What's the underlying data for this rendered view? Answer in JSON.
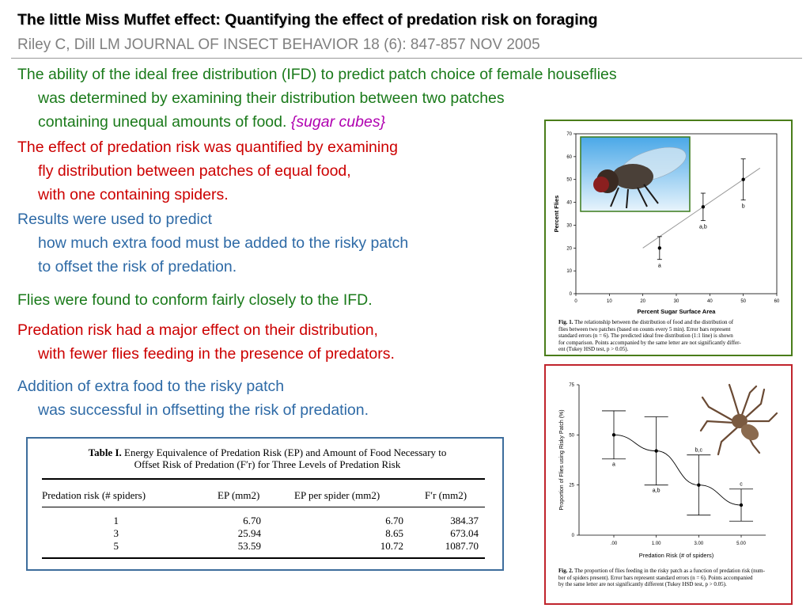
{
  "header": {
    "title": "The little Miss Muffet effect: Quantifying the effect of predation risk on foraging",
    "citation": "Riley C, Dill LM  JOURNAL OF INSECT BEHAVIOR 18 (6): 847-857 NOV 2005"
  },
  "paragraphs": {
    "p1": {
      "line1": "The ability of the ideal free distribution (IFD) to predict patch choice of female houseflies",
      "line2": "was determined by examining their distribution between two patches",
      "line3": "containing unequal amounts of food.",
      "note": "{sugar cubes}"
    },
    "p2": {
      "line1": "The effect of predation risk was quantified by examining",
      "line2": "fly distribution between patches of equal food,",
      "line3": "with one containing spiders."
    },
    "p3": {
      "line1": "Results were used to predict",
      "line2": "how much extra food must be added to the risky patch",
      "line3": "to offset the risk of predation."
    },
    "p4": {
      "line1": "Flies were found to conform fairly closely to the IFD."
    },
    "p5": {
      "line1": "Predation risk had a major effect on their distribution,",
      "line2": "with fewer flies feeding in the presence of predators."
    },
    "p6": {
      "line1": "Addition of extra food to the risky patch",
      "line2": "was successful in offsetting the risk of predation."
    }
  },
  "table": {
    "caption_label": "Table I.",
    "caption_line1": "Energy Equivalence of Predation Risk (EP) and Amount of Food Necessary to",
    "caption_line2": "Offset Risk of Predation (F′r) for Three Levels of Predation Risk",
    "headers": [
      "Predation risk (# spiders)",
      "EP (mm2)",
      "EP per spider (mm2)",
      "F′r (mm2)"
    ],
    "rows": [
      [
        "1",
        "6.70",
        "6.70",
        "384.37"
      ],
      [
        "3",
        "25.94",
        "8.65",
        "673.04"
      ],
      [
        "5",
        "53.59",
        "10.72",
        "1087.70"
      ]
    ]
  },
  "chart_data": [
    {
      "type": "scatter",
      "title": "",
      "xlabel": "Percent Sugar Surface Area",
      "ylabel": "Percent Flies",
      "xlim": [
        0,
        60
      ],
      "ylim": [
        0,
        70
      ],
      "xticks": [
        "0",
        "10",
        "20",
        "30",
        "40",
        "50",
        "60"
      ],
      "yticks": [
        "0",
        "10",
        "20",
        "30",
        "40",
        "50",
        "60",
        "70"
      ],
      "points": [
        {
          "x": 25,
          "y": 20,
          "err": 5,
          "label": "a"
        },
        {
          "x": 38,
          "y": 38,
          "err": 6,
          "label": "a,b"
        },
        {
          "x": 50,
          "y": 50,
          "err": 9,
          "label": "b"
        }
      ],
      "ifd_line": {
        "x": [
          20,
          55
        ],
        "y": [
          20,
          55
        ]
      },
      "caption_label": "Fig. 1.",
      "caption_lines": [
        "The relationship between the distribution of food and the distribution of",
        "flies between two patches (based on counts every 5 min). Error bars represent",
        "standard errors (n = 6). The predicted ideal free distribution (1:1 line) is shown",
        "for comparison. Points accompanied by the same letter are not significantly differ-",
        "ent (Tukey HSD test, p > 0.05)."
      ]
    },
    {
      "type": "line",
      "title": "",
      "xlabel": "Predation Risk (# of spiders)",
      "ylabel": "Proportion of Flies using Risky Patch (%)",
      "categories": [
        ".00",
        "1.00",
        "3.00",
        "5.00"
      ],
      "ylim": [
        0,
        75
      ],
      "yticks": [
        "0",
        "25",
        "50",
        "75"
      ],
      "series": [
        {
          "values": [
            50,
            42,
            25,
            15
          ],
          "errors": [
            12,
            17,
            15,
            8
          ],
          "labels": [
            "a",
            "a,b",
            "b,c",
            "c"
          ]
        }
      ],
      "caption_label": "Fig. 2.",
      "caption_lines": [
        "The proportion of flies feeding in the risky patch as a function of predation risk (num-",
        "ber of spiders present). Error bars represent standard errors (n = 6). Points accompanied",
        "by the same letter are not significantly different (Tukey HSD test, p > 0.05)."
      ]
    }
  ],
  "colors": {
    "green": "#1a7a1a",
    "red": "#cc0000",
    "blue": "#2e6aa6",
    "magenta": "#b000b0",
    "fig1_border": "#4a7d1a",
    "fig2_border": "#c0242c",
    "table_border": "#3d6d9c"
  }
}
